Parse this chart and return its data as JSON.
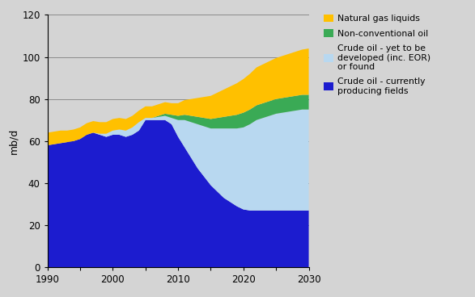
{
  "years": [
    1990,
    1991,
    1992,
    1993,
    1994,
    1995,
    1996,
    1997,
    1998,
    1999,
    2000,
    2001,
    2002,
    2003,
    2004,
    2005,
    2006,
    2007,
    2008,
    2009,
    2010,
    2011,
    2012,
    2013,
    2014,
    2015,
    2016,
    2017,
    2018,
    2019,
    2020,
    2021,
    2022,
    2023,
    2024,
    2025,
    2026,
    2027,
    2028,
    2029,
    2030
  ],
  "crude_current": [
    58,
    58.5,
    59,
    59.5,
    60,
    61,
    63,
    64,
    63,
    62,
    63,
    63,
    62,
    63,
    65,
    70,
    70,
    70,
    70,
    68,
    62,
    57,
    52,
    47,
    43,
    39,
    36,
    33,
    31,
    29,
    27.5,
    27,
    27,
    27,
    27,
    27,
    27,
    27,
    27,
    27,
    27
  ],
  "crude_yet": [
    0,
    0,
    0,
    0,
    0,
    0,
    0,
    0,
    0.5,
    1.5,
    2,
    2.5,
    3,
    3.5,
    4,
    1,
    1,
    1.5,
    2,
    3,
    8,
    13,
    17,
    21,
    24,
    27,
    30,
    33,
    35,
    37,
    39,
    41,
    43,
    44,
    45,
    46,
    46.5,
    47,
    47.5,
    48,
    48
  ],
  "nonconv": [
    0,
    0,
    0,
    0,
    0,
    0,
    0,
    0,
    0,
    0,
    0,
    0,
    0,
    0,
    0,
    0,
    0,
    0.5,
    1,
    1.5,
    2,
    2.5,
    3,
    3.5,
    4,
    4.5,
    5,
    5.5,
    6,
    6.5,
    7,
    7,
    7,
    7,
    7,
    7,
    7,
    7,
    7,
    7,
    7
  ],
  "ngl": [
    6,
    6,
    6,
    5.5,
    5.5,
    5.5,
    5.5,
    5.5,
    5.5,
    5.5,
    5.5,
    5.5,
    5.5,
    5.5,
    5.5,
    5.5,
    5.5,
    5.5,
    5.5,
    5.5,
    6,
    7,
    8,
    9,
    10,
    11,
    12,
    13,
    14,
    15,
    16,
    17,
    18,
    18.5,
    19,
    19.5,
    20,
    20.5,
    21,
    21.5,
    22
  ],
  "color_crude_current": "#1c1ccf",
  "color_crude_yet": "#b8d8f0",
  "color_nonconv": "#3aaa55",
  "color_ngl": "#ffc000",
  "ylabel": "mb/d",
  "ylim": [
    0,
    120
  ],
  "yticks": [
    0,
    20,
    40,
    60,
    80,
    100,
    120
  ],
  "xlim": [
    1990,
    2030
  ],
  "xticks": [
    1990,
    1995,
    2000,
    2005,
    2010,
    2015,
    2020,
    2025,
    2030
  ],
  "xticklabels": [
    "1990",
    "",
    "2000",
    "",
    "2010",
    "",
    "2020",
    "",
    "2030"
  ],
  "bg_color": "#d4d4d4",
  "legend_labels": [
    "Natural gas liquids",
    "Non-conventional oil",
    "Crude oil - yet to be\ndeveloped (inc. EOR)\nor found",
    "Crude oil - currently\nproducing fields"
  ],
  "legend_colors": [
    "#ffc000",
    "#3aaa55",
    "#b8d8f0",
    "#1c1ccf"
  ]
}
